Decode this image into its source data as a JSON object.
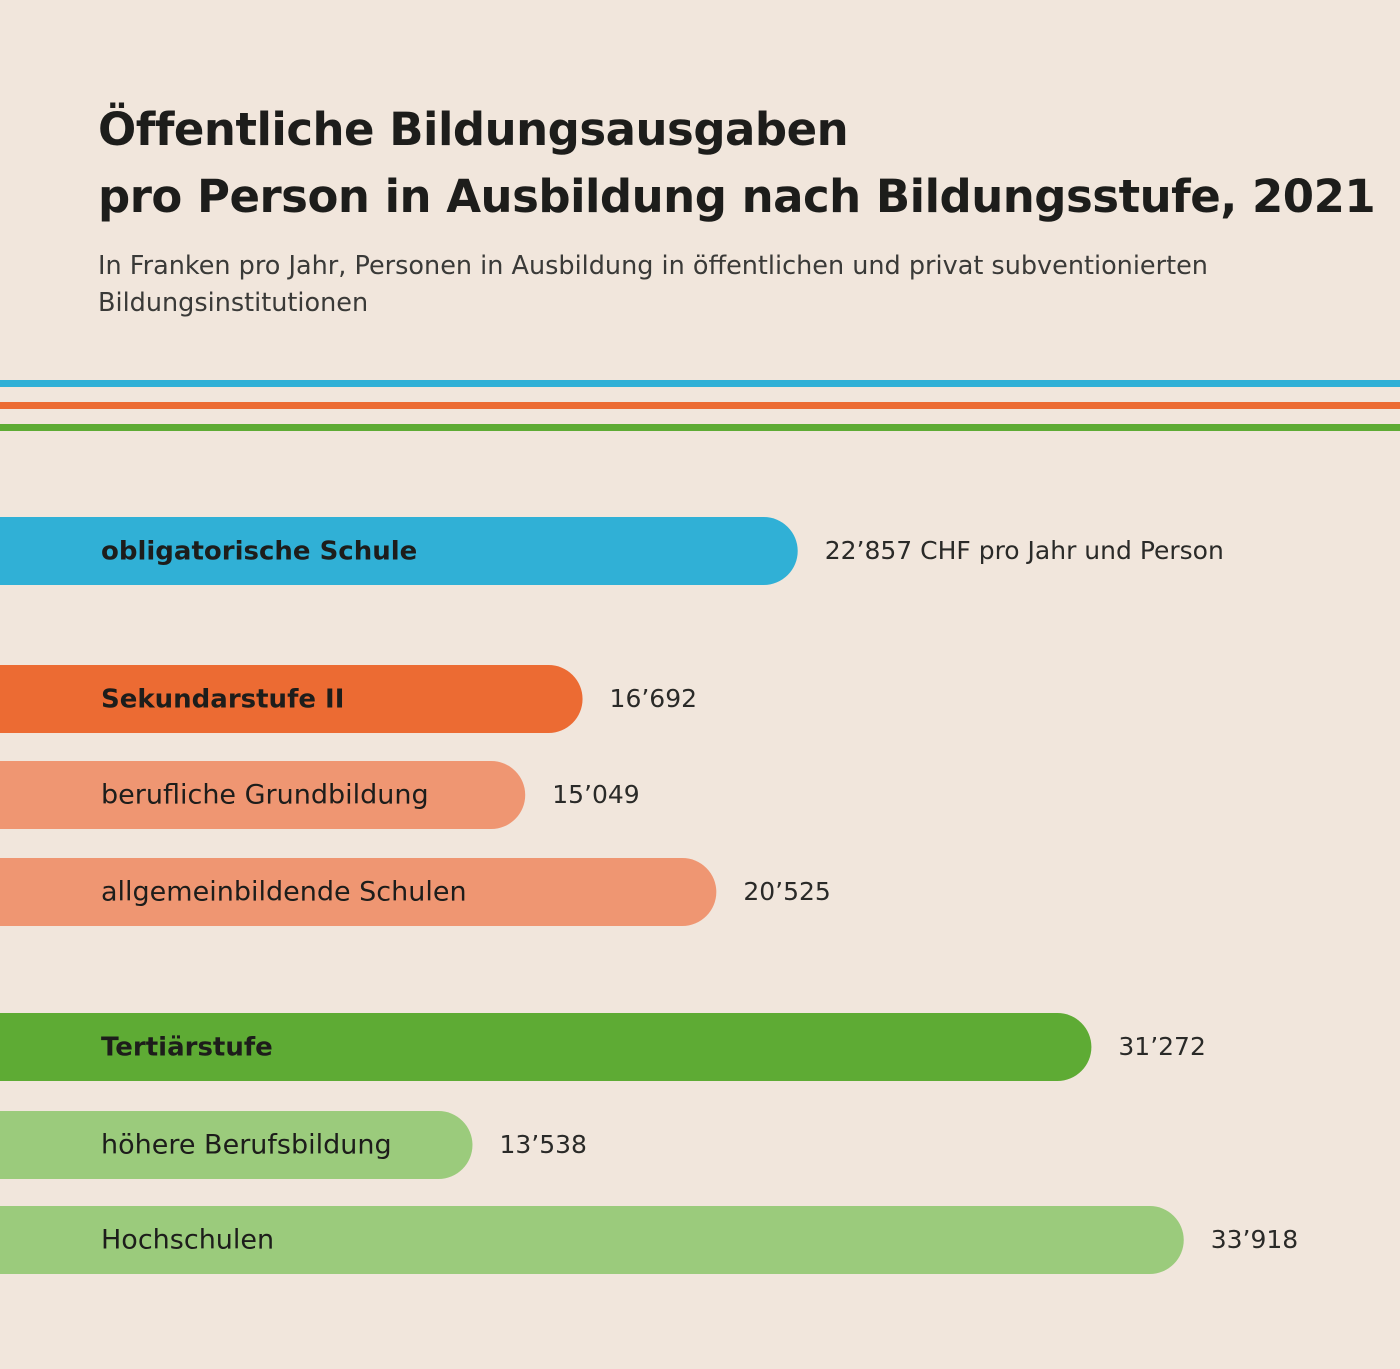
{
  "title_line1": "Öffentliche Bildungsausgaben",
  "title_line2": "pro Person in Ausbildung nach Bildungsstufe, 2021",
  "subtitle": "In Franken pro Jahr, Personen in Ausbildung in öffentlichen und privat subventionierten Bildungsinstitutionen",
  "colors": {
    "background": "#f1e6dc",
    "blue": "#30b0d6",
    "orange": "#ec6b33",
    "orange_light": "#ef9672",
    "green": "#5eab34",
    "green_light": "#9bcb7c",
    "text": "#1d1d1b"
  },
  "chart_data": {
    "type": "bar",
    "orientation": "horizontal",
    "unit": "CHF pro Jahr und Person",
    "categories": [
      "obligatorische Schule",
      "Sekundarstufe II",
      "berufliche Grundbildung",
      "allgemeinbildende Schulen",
      "Tertiärstufe",
      "höhere Berufsbildung",
      "Hochschulen"
    ],
    "values": [
      22857,
      16692,
      15049,
      20525,
      31272,
      13538,
      33918
    ],
    "value_labels": [
      "22’857 CHF pro Jahr und Person",
      "16’692",
      "15’049",
      "20’525",
      "31’272",
      "13’538",
      "33’918"
    ],
    "emphasis": [
      "bold",
      "bold",
      "normal",
      "normal",
      "bold",
      "normal",
      "normal"
    ],
    "bar_colors": [
      "#30b0d6",
      "#ec6b33",
      "#ef9672",
      "#ef9672",
      "#5eab34",
      "#9bcb7c",
      "#9bcb7c"
    ],
    "groups": [
      {
        "name": "obligatorische Schule",
        "members": [
          "obligatorische Schule"
        ]
      },
      {
        "name": "Sekundarstufe II",
        "members": [
          "Sekundarstufe II",
          "berufliche Grundbildung",
          "allgemeinbildende Schulen"
        ]
      },
      {
        "name": "Tertiärstufe",
        "members": [
          "Tertiärstufe",
          "höhere Berufsbildung",
          "Hochschulen"
        ]
      }
    ],
    "xlim": [
      0,
      34000
    ],
    "grid": false,
    "legend": "none",
    "xlabel": "",
    "ylabel": ""
  }
}
